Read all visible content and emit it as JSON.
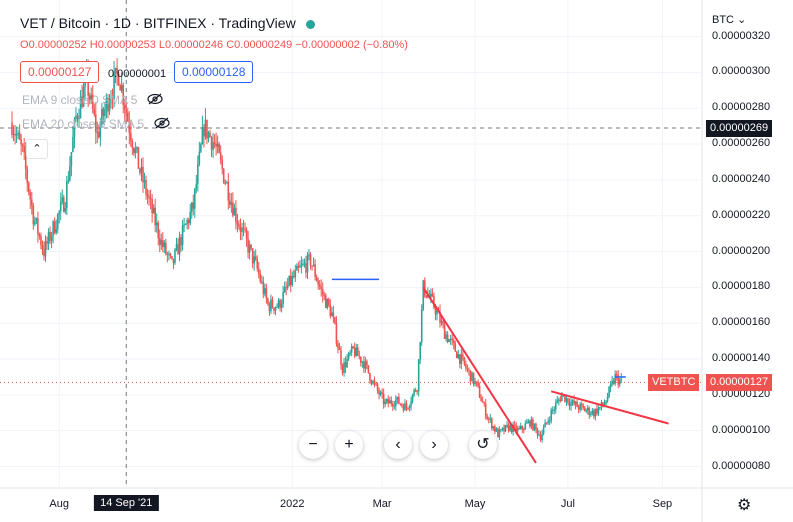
{
  "chart_data": {
    "type": "candlestick",
    "title": "VET / Bitcoin · 1D · BITFINEX · TradingView",
    "symbol": "VETBTC",
    "ohlc_readout": {
      "open_label": "O",
      "open": "0.00000252",
      "high_label": "H",
      "high": "0.00000253",
      "low_label": "L",
      "low": "0.00000246",
      "close_label": "C",
      "close": "0.00000249",
      "change": "−0.00000002 (−0.80%)"
    },
    "sell_price": "0.00000127",
    "spread": "0.00000001",
    "buy_price": "0.00000128",
    "indicators": [
      "EMA 9 close 0 SMA 5",
      "EMA 20 close 0 SMA 5"
    ],
    "currency": "BTC",
    "yaxis": {
      "ylim": [
        6.8e-07,
        3.36e-06
      ],
      "ticks": [
        "0.00000320",
        "0.00000300",
        "0.00000280",
        "0.00000260",
        "0.00000240",
        "0.00000220",
        "0.00000200",
        "0.00000180",
        "0.00000160",
        "0.00000140",
        "0.00000120",
        "0.00000100",
        "0.00000080"
      ],
      "tick_values": [
        3.2e-06,
        3e-06,
        2.8e-06,
        2.6e-06,
        2.4e-06,
        2.2e-06,
        2e-06,
        1.8e-06,
        1.6e-06,
        1.4e-06,
        1.2e-06,
        1e-06,
        8e-07
      ]
    },
    "xaxis": {
      "labels": [
        "Aug",
        "14 Sep '21",
        "2022",
        "Mar",
        "May",
        "Jul",
        "Sep"
      ],
      "label_dates": [
        "2021-08-01",
        "2021-09-14",
        "2022-01-01",
        "2022-03-01",
        "2022-05-01",
        "2022-07-01",
        "2022-09-01"
      ],
      "range": [
        "2021-07-01",
        "2022-09-27"
      ],
      "cursor_date": "2021-09-14"
    },
    "crosshair_price": "0.00000269",
    "crosshair_value": 2.69e-06,
    "last_price": "0.00000127",
    "last_value": 1.27e-06,
    "price_path": [
      [
        "2021-07-01",
        2.72e-06
      ],
      [
        "2021-07-08",
        2.55e-06
      ],
      [
        "2021-07-15",
        2.2e-06
      ],
      [
        "2021-07-22",
        2e-06
      ],
      [
        "2021-07-29",
        2.15e-06
      ],
      [
        "2021-08-05",
        2.3e-06
      ],
      [
        "2021-08-12",
        2.75e-06
      ],
      [
        "2021-08-19",
        2.95e-06
      ],
      [
        "2021-08-26",
        2.65e-06
      ],
      [
        "2021-09-02",
        2.85e-06
      ],
      [
        "2021-09-09",
        3e-06
      ],
      [
        "2021-09-16",
        2.7e-06
      ],
      [
        "2021-09-23",
        2.45e-06
      ],
      [
        "2021-09-30",
        2.25e-06
      ],
      [
        "2021-10-07",
        2.05e-06
      ],
      [
        "2021-10-14",
        1.92e-06
      ],
      [
        "2021-10-21",
        2.1e-06
      ],
      [
        "2021-10-28",
        2.25e-06
      ],
      [
        "2021-11-04",
        2.7e-06
      ],
      [
        "2021-11-11",
        2.6e-06
      ],
      [
        "2021-11-18",
        2.4e-06
      ],
      [
        "2021-11-25",
        2.2e-06
      ],
      [
        "2021-12-02",
        2.05e-06
      ],
      [
        "2021-12-09",
        1.9e-06
      ],
      [
        "2021-12-16",
        1.7e-06
      ],
      [
        "2021-12-23",
        1.7e-06
      ],
      [
        "2021-12-30",
        1.82e-06
      ],
      [
        "2022-01-06",
        1.9e-06
      ],
      [
        "2022-01-13",
        1.95e-06
      ],
      [
        "2022-01-20",
        1.78e-06
      ],
      [
        "2022-01-27",
        1.65e-06
      ],
      [
        "2022-02-03",
        1.35e-06
      ],
      [
        "2022-02-10",
        1.45e-06
      ],
      [
        "2022-02-17",
        1.38e-06
      ],
      [
        "2022-02-24",
        1.25e-06
      ],
      [
        "2022-03-03",
        1.15e-06
      ],
      [
        "2022-03-10",
        1.17e-06
      ],
      [
        "2022-03-17",
        1.13e-06
      ],
      [
        "2022-03-24",
        1.25e-06
      ],
      [
        "2022-03-28",
        1.8e-06
      ],
      [
        "2022-04-04",
        1.7e-06
      ],
      [
        "2022-04-11",
        1.55e-06
      ],
      [
        "2022-04-18",
        1.45e-06
      ],
      [
        "2022-04-25",
        1.35e-06
      ],
      [
        "2022-05-02",
        1.25e-06
      ],
      [
        "2022-05-09",
        1.08e-06
      ],
      [
        "2022-05-16",
        9.8e-07
      ],
      [
        "2022-05-23",
        1.02e-06
      ],
      [
        "2022-05-30",
        1e-06
      ],
      [
        "2022-06-06",
        1.05e-06
      ],
      [
        "2022-06-13",
        9.7e-07
      ],
      [
        "2022-06-20",
        1.1e-06
      ],
      [
        "2022-06-27",
        1.2e-06
      ],
      [
        "2022-07-04",
        1.15e-06
      ],
      [
        "2022-07-11",
        1.12e-06
      ],
      [
        "2022-07-18",
        1.1e-06
      ],
      [
        "2022-07-25",
        1.15e-06
      ],
      [
        "2022-08-01",
        1.3e-06
      ],
      [
        "2022-08-05",
        1.27e-06
      ]
    ],
    "horizontal_lines": [
      {
        "start": "2022-01-27",
        "end": "2022-02-27",
        "value": 1.845e-06
      },
      {
        "start": "2022-08-01",
        "end": "2022-08-08",
        "value": 1.3e-06
      }
    ],
    "trend_lines": [
      {
        "from": [
          "2022-03-28",
          1.8e-06
        ],
        "to": [
          "2022-06-10",
          8.2e-07
        ]
      },
      {
        "from": [
          "2022-06-20",
          1.22e-06
        ],
        "to": [
          "2022-09-05",
          1.04e-06
        ]
      }
    ],
    "colors": {
      "up": "#26a69a",
      "down": "#ef5350",
      "drawing_blue": "#2962ff",
      "trend_red": "#f23645",
      "last_price": "#ef5350",
      "crosshair_tag": "#131722"
    }
  },
  "controls": {
    "zoom_out": "−",
    "zoom_in": "+",
    "scroll_left": "‹",
    "scroll_right": "›",
    "reset": "↺",
    "settings_icon": "gear-icon"
  },
  "grid": true
}
